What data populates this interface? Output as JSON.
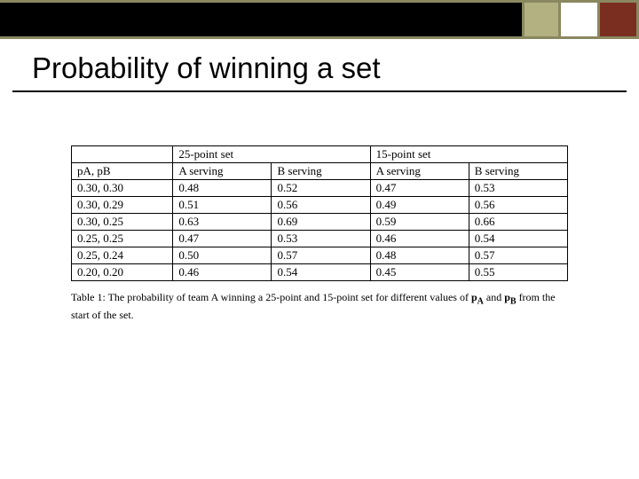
{
  "colors": {
    "band_border": "#8a8860",
    "band_black": "#000000",
    "sq_olive": "#b3b081",
    "sq_white": "#ffffff",
    "sq_maroon": "#7a2e1f",
    "title_underline": "#000000",
    "background": "#ffffff",
    "table_border": "#000000",
    "text": "#000000"
  },
  "title": "Probability of winning a set",
  "table": {
    "type": "table",
    "header_row1": [
      "",
      "25-point set",
      "",
      "15-point set",
      ""
    ],
    "header_row2": [
      "pA, pB",
      "A serving",
      "B serving",
      "A serving",
      "B serving"
    ],
    "col_count": 5,
    "rows": [
      [
        "0.30, 0.30",
        "0.48",
        "0.52",
        "0.47",
        "0.53"
      ],
      [
        "0.30, 0.29",
        "0.51",
        "0.56",
        "0.49",
        "0.56"
      ],
      [
        "0.30, 0.25",
        "0.63",
        "0.69",
        "0.59",
        "0.66"
      ],
      [
        "0.25, 0.25",
        "0.47",
        "0.53",
        "0.46",
        "0.54"
      ],
      [
        "0.25, 0.24",
        "0.50",
        "0.57",
        "0.48",
        "0.57"
      ],
      [
        "0.20, 0.20",
        "0.46",
        "0.54",
        "0.45",
        "0.55"
      ]
    ],
    "font_family": "Times New Roman",
    "font_size_pt": 10,
    "cell_align": "left"
  },
  "caption_prefix": "Table 1: The probability of team A winning a 25-point and 15-point set for different values of ",
  "caption_pA": "pA",
  "caption_and": " and ",
  "caption_pB": "pB",
  "caption_suffix": " from the start of the set."
}
